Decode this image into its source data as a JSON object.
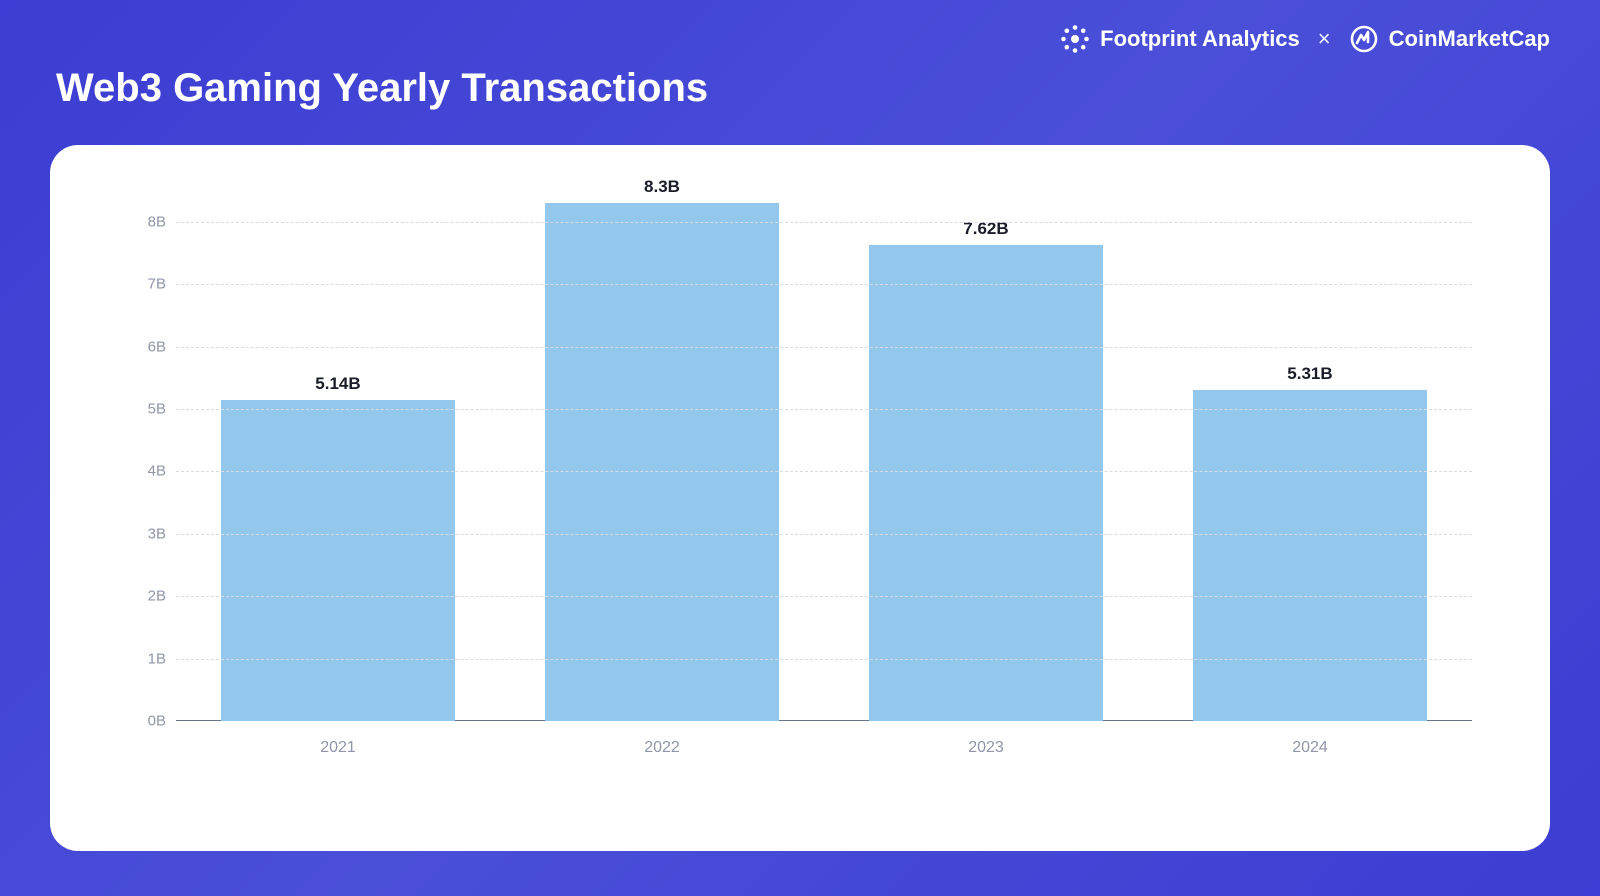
{
  "header": {
    "title": "Web3 Gaming Yearly Transactions",
    "brand_left": "Footprint Analytics",
    "separator": "×",
    "brand_right": "CoinMarketCap"
  },
  "chart": {
    "type": "bar",
    "categories": [
      "2021",
      "2022",
      "2023",
      "2024"
    ],
    "values": [
      5.14,
      8.3,
      7.62,
      5.31
    ],
    "value_labels": [
      "5.14B",
      "8.3B",
      "7.62B",
      "5.31B"
    ],
    "bar_color": "#94c7ec",
    "ylim": [
      0,
      8.3
    ],
    "yticks": [
      0,
      1,
      2,
      3,
      4,
      5,
      6,
      7,
      8
    ],
    "ytick_labels": [
      "0B",
      "1B",
      "2B",
      "3B",
      "4B",
      "5B",
      "6B",
      "7B",
      "8B"
    ],
    "grid_color": "#d9dbe3",
    "axis_color": "#6b6f82",
    "tick_label_color": "#9096a8",
    "value_label_color": "#1a1d29",
    "value_label_fontsize": 17,
    "tick_fontsize": 15,
    "bar_width_ratio": 0.72,
    "background_color": "#ffffff",
    "page_background": "linear-gradient(135deg,#3c3dd2,#4a4fd8,#3c3dd2)",
    "title_color": "#ffffff",
    "title_fontsize": 40
  }
}
